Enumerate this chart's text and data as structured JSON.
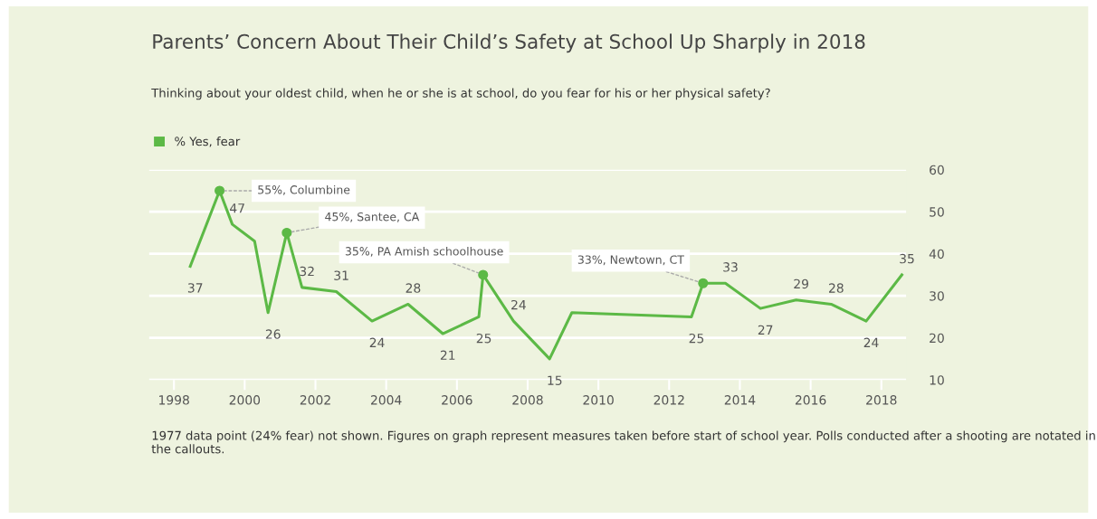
{
  "chart_data": {
    "type": "line",
    "title": "Parents’ Concern About Their Child’s Safety at School Up Sharply in 2018",
    "subtitle": "Thinking about your oldest child, when he or she is at school, do you fear for his or her physical safety?",
    "x": [
      1998.46,
      1999.29,
      1999.65,
      2000.28,
      2000.66,
      2001.19,
      2001.62,
      2002.59,
      2003.6,
      2004.62,
      2005.6,
      2006.62,
      2006.74,
      2007.6,
      2008.62,
      2009.25,
      2012.63,
      2012.96,
      2013.59,
      2014.58,
      2015.59,
      2016.58,
      2017.57,
      2018.58
    ],
    "series": [
      {
        "name": "% Yes, fear",
        "color": "#5cb946",
        "values": [
          37,
          55,
          47,
          43,
          26,
          45,
          32,
          31,
          24,
          28,
          21,
          25,
          35,
          24,
          15,
          26,
          25,
          33,
          33,
          27,
          29,
          28,
          24,
          35
        ],
        "value_labels": [
          "37",
          null,
          "47",
          null,
          "26",
          null,
          "32",
          "31",
          "24",
          "28",
          "21",
          "25",
          null,
          "24",
          "15",
          null,
          "25",
          null,
          "33",
          "27",
          "29",
          "28",
          "24",
          "35"
        ]
      }
    ],
    "xlim": [
      1997.3,
      2018.7
    ],
    "ylim": [
      10,
      60
    ],
    "xticks": [
      1998,
      2000,
      2002,
      2004,
      2006,
      2008,
      2010,
      2012,
      2014,
      2016,
      2018
    ],
    "yticks": [
      10,
      20,
      30,
      40,
      50,
      60
    ],
    "grid": "y",
    "legend": "top left",
    "marker": "none",
    "line_style": "solid",
    "annotations": [
      {
        "text": "55%, Columbine",
        "x": 1999.29,
        "y": 55
      },
      {
        "text": "45%, Santee, CA",
        "x": 2001.19,
        "y": 45
      },
      {
        "text": "35%, PA Amish schoolhouse",
        "x": 2006.74,
        "y": 35
      },
      {
        "text": "33%, Newtown, CT",
        "x": 2012.96,
        "y": 33
      },
      "1977 data point (24% fear) not shown. Figures on graph represent measures taken before start of school year. Polls conducted after a shooting are notated in the callouts."
    ]
  }
}
